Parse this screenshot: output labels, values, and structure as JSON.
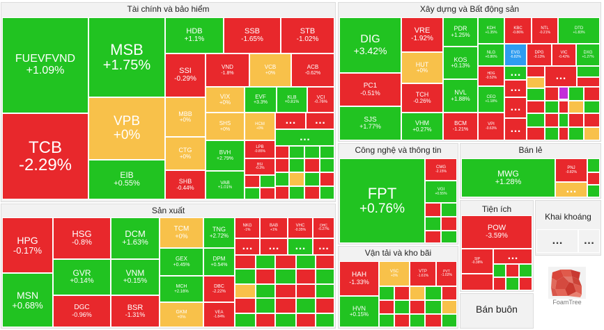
{
  "sectors": {
    "finance": "Tài chính và bảo hiểm",
    "realestate": "Xây dựng và Bất động sản",
    "tech": "Công nghệ và thông tin",
    "retail": "Bán lẻ",
    "manufacturing": "Sản xuất",
    "transport": "Vận tải và kho bãi",
    "utilities": "Tiện ích",
    "mining": "Khai khoáng",
    "wholesale": "Bán buôn"
  },
  "tiles": {
    "fuevfvnd": {
      "s": "FUEVFVND",
      "c": "+1.09%"
    },
    "tcb": {
      "s": "TCB",
      "c": "-2.29%"
    },
    "msb": {
      "s": "MSB",
      "c": "+1.75%"
    },
    "vpb": {
      "s": "VPB",
      "c": "+0%"
    },
    "eib": {
      "s": "EIB",
      "c": "+0.55%"
    },
    "hdb": {
      "s": "HDB",
      "c": "+1.1%"
    },
    "ssb": {
      "s": "SSB",
      "c": "-1.65%"
    },
    "stb": {
      "s": "STB",
      "c": "-1.02%"
    },
    "ssi": {
      "s": "SSI",
      "c": "-0.29%"
    },
    "vnd": {
      "s": "VND",
      "c": "-1.8%"
    },
    "vcb": {
      "s": "VCB",
      "c": "+0%"
    },
    "acb": {
      "s": "ACB",
      "c": "-0.62%"
    },
    "vix": {
      "s": "VIX",
      "c": "+0%"
    },
    "evf": {
      "s": "EVF",
      "c": "+3.3%"
    },
    "klb": {
      "s": "KLB",
      "c": "+0.81%"
    },
    "vci": {
      "s": "VCI",
      "c": "-0.76%"
    },
    "mbb": {
      "s": "MBB",
      "c": "+0%"
    },
    "shs": {
      "s": "SHS",
      "c": "+0%"
    },
    "hcm": {
      "s": "HCM",
      "c": "+0%"
    },
    "ctg": {
      "s": "CTG",
      "c": "+0%"
    },
    "lpb": {
      "s": "LPB",
      "c": "-0.85%"
    },
    "bvh": {
      "s": "BVH",
      "c": "+2.79%"
    },
    "bsi": {
      "s": "BSI",
      "c": "-0.3%"
    },
    "shb": {
      "s": "SHB",
      "c": "-0.44%"
    },
    "vab": {
      "s": "VAB",
      "c": "+1.01%"
    },
    "dig": {
      "s": "DIG",
      "c": "+3.42%"
    },
    "vre": {
      "s": "VRE",
      "c": "-1.92%"
    },
    "pdr": {
      "s": "PDR",
      "c": "+1.25%"
    },
    "kdh": {
      "s": "KDH",
      "c": "+1.35%"
    },
    "kbc": {
      "s": "KBC",
      "c": "-0.86%"
    },
    "ntl": {
      "s": "NTL",
      "c": "-0.21%"
    },
    "dtd": {
      "s": "DTD",
      "c": "+1.83%"
    },
    "nlg": {
      "s": "NLG",
      "c": "+0.86%"
    },
    "evg": {
      "s": "EVG",
      "c": "-6.82%"
    },
    "dpg": {
      "s": "DPG",
      "c": "-0.13%"
    },
    "vic": {
      "s": "VIC",
      "c": "-0.42%"
    },
    "dxg": {
      "s": "DXG",
      "c": "+1.27%"
    },
    "hut": {
      "s": "HUT",
      "c": "+0%"
    },
    "kos": {
      "s": "KOS",
      "c": "+0.13%"
    },
    "hdg": {
      "s": "HDG",
      "c": "-0.52%"
    },
    "pc1": {
      "s": "PC1",
      "c": "-0.51%"
    },
    "tch": {
      "s": "TCH",
      "c": "-0.26%"
    },
    "nvl": {
      "s": "NVL",
      "c": "+1.88%"
    },
    "ceo": {
      "s": "CEO",
      "c": "+1.18%"
    },
    "sjs": {
      "s": "SJS",
      "c": "+1.77%"
    },
    "vhm": {
      "s": "VHM",
      "c": "+0.27%"
    },
    "bcm": {
      "s": "BCM",
      "c": "-1.21%"
    },
    "vpi": {
      "s": "VPI",
      "c": "-0.63%"
    },
    "fpt": {
      "s": "FPT",
      "c": "+0.76%"
    },
    "cmg": {
      "s": "CMG",
      "c": "-2.15%"
    },
    "vgi": {
      "s": "VGI",
      "c": "+0.55%"
    },
    "mwg": {
      "s": "MWG",
      "c": "+1.28%"
    },
    "pnj": {
      "s": "PNJ",
      "c": "-0.82%"
    },
    "hpg": {
      "s": "HPG",
      "c": "-0.17%"
    },
    "hsg": {
      "s": "HSG",
      "c": "-0.8%"
    },
    "dcm": {
      "s": "DCM",
      "c": "+1.63%"
    },
    "tcm": {
      "s": "TCM",
      "c": "+0%"
    },
    "tng": {
      "s": "TNG",
      "c": "+2.72%"
    },
    "nkg": {
      "s": "NKG",
      "c": "-1%"
    },
    "bab": {
      "s": "BAB",
      "c": "+1%"
    },
    "vhc": {
      "s": "VHC",
      "c": "-0.35%"
    },
    "dhc": {
      "s": "DHC",
      "c": "-0.27%"
    },
    "gex": {
      "s": "GEX",
      "c": "+0.45%"
    },
    "dpm": {
      "s": "DPM",
      "c": "+0.54%"
    },
    "msn": {
      "s": "MSN",
      "c": "+0.68%"
    },
    "gvr": {
      "s": "GVR",
      "c": "+0.14%"
    },
    "vnm": {
      "s": "VNM",
      "c": "+0.15%"
    },
    "mch": {
      "s": "MCH",
      "c": "+2.16%"
    },
    "dbc": {
      "s": "DBC",
      "c": "-2.22%"
    },
    "dgc": {
      "s": "DGC",
      "c": "-0.96%"
    },
    "bsr": {
      "s": "BSR",
      "c": "-1.31%"
    },
    "gkm": {
      "s": "GKM",
      "c": "+0%"
    },
    "vea": {
      "s": "VEA",
      "c": "-1.84%"
    },
    "hah": {
      "s": "HAH",
      "c": "-1.33%"
    },
    "vsc": {
      "s": "VSC",
      "c": "+0%"
    },
    "vtp": {
      "s": "VTP",
      "c": "-1.61%"
    },
    "pvt": {
      "s": "PVT",
      "c": "-1.02%"
    },
    "hvn": {
      "s": "HVN",
      "c": "+0.15%"
    },
    "pow": {
      "s": "POW",
      "c": "-3.59%"
    },
    "sip": {
      "s": "SIP",
      "c": "-0.38%"
    }
  },
  "more": "…",
  "logo_text": "FoamTree",
  "colors": {
    "up": "#21c321",
    "down": "#e8282c",
    "flat": "#f8c14a",
    "floor": "#2e9cf0",
    "ceiling": "#c32fd8"
  }
}
